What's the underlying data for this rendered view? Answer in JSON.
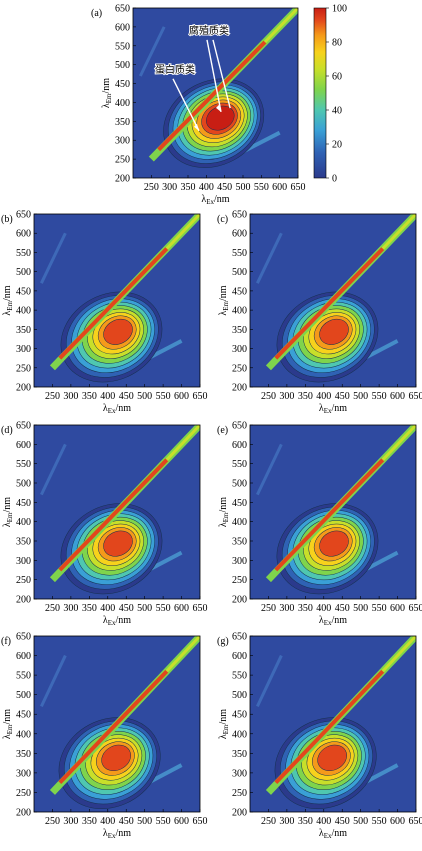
{
  "figure": {
    "colorbar": {
      "ticks": [
        0,
        20,
        40,
        60,
        80,
        100
      ],
      "colors": [
        "#2b3a8c",
        "#2f62b4",
        "#3aa0d6",
        "#4fc7b0",
        "#7fd44c",
        "#c8df2a",
        "#f7d21c",
        "#f59a1a",
        "#e2461c",
        "#c81e14"
      ]
    }
  },
  "chart_data": [
    {
      "type": "heatmap",
      "panel_label": "(a)",
      "xlabel": "λEx/nm",
      "ylabel": "λEm/nm",
      "xticks": [
        250,
        300,
        350,
        400,
        450,
        500,
        550,
        600,
        650
      ],
      "yticks": [
        200,
        250,
        300,
        350,
        400,
        450,
        500,
        550,
        600,
        650
      ],
      "xlim": [
        200,
        650
      ],
      "ylim": [
        200,
        650
      ],
      "annotations": [
        {
          "text": "蛋白质类",
          "points_to": {
            "x": 380,
            "y": 325
          }
        },
        {
          "text": "腐殖质类",
          "points_to": {
            "x": 440,
            "y": 375
          }
        }
      ],
      "peak": {
        "x": 440,
        "y": 360,
        "max": 100
      }
    },
    {
      "type": "heatmap",
      "panel_label": "(b)",
      "xlabel": "λEx/nm",
      "ylabel": "λEm/nm",
      "xticks": [
        250,
        300,
        350,
        400,
        450,
        500,
        550,
        600,
        650
      ],
      "yticks": [
        200,
        250,
        300,
        350,
        400,
        450,
        500,
        550,
        600,
        650
      ],
      "xlim": [
        200,
        650
      ],
      "ylim": [
        200,
        650
      ],
      "peak": {
        "x": 430,
        "y": 345,
        "max": 90
      }
    },
    {
      "type": "heatmap",
      "panel_label": "(c)",
      "xlabel": "λEx/nm",
      "ylabel": "λEm/nm",
      "xticks": [
        250,
        300,
        350,
        400,
        450,
        500,
        550,
        600,
        650
      ],
      "yticks": [
        200,
        250,
        300,
        350,
        400,
        450,
        500,
        550,
        600,
        650
      ],
      "xlim": [
        200,
        650
      ],
      "ylim": [
        200,
        650
      ],
      "peak": {
        "x": 430,
        "y": 345,
        "max": 90
      }
    },
    {
      "type": "heatmap",
      "panel_label": "(d)",
      "xlabel": "λEx/nm",
      "ylabel": "λEm/nm",
      "xticks": [
        250,
        300,
        350,
        400,
        450,
        500,
        550,
        600,
        650
      ],
      "yticks": [
        200,
        250,
        300,
        350,
        400,
        450,
        500,
        550,
        600,
        650
      ],
      "xlim": [
        200,
        650
      ],
      "ylim": [
        200,
        650
      ],
      "peak": {
        "x": 430,
        "y": 345,
        "max": 90
      }
    },
    {
      "type": "heatmap",
      "panel_label": "(e)",
      "xlabel": "λEx/nm",
      "ylabel": "λEm/nm",
      "xticks": [
        250,
        300,
        350,
        400,
        450,
        500,
        550,
        600,
        650
      ],
      "yticks": [
        200,
        250,
        300,
        350,
        400,
        450,
        500,
        550,
        600,
        650
      ],
      "xlim": [
        200,
        650
      ],
      "ylim": [
        200,
        650
      ],
      "peak": {
        "x": 430,
        "y": 345,
        "max": 90
      }
    },
    {
      "type": "heatmap",
      "panel_label": "(f)",
      "xlabel": "λEx/nm",
      "ylabel": "λEm/nm",
      "xticks": [
        250,
        300,
        350,
        400,
        450,
        500,
        550,
        600,
        650
      ],
      "yticks": [
        200,
        250,
        300,
        350,
        400,
        450,
        500,
        550,
        600,
        650
      ],
      "xlim": [
        200,
        650
      ],
      "ylim": [
        200,
        650
      ],
      "peak": {
        "x": 425,
        "y": 340,
        "max": 85
      }
    },
    {
      "type": "heatmap",
      "panel_label": "(g)",
      "xlabel": "λEx/nm",
      "ylabel": "λEm/nm",
      "xticks": [
        250,
        300,
        350,
        400,
        450,
        500,
        550,
        600,
        650
      ],
      "yticks": [
        200,
        250,
        300,
        350,
        400,
        450,
        500,
        550,
        600,
        650
      ],
      "xlim": [
        200,
        650
      ],
      "ylim": [
        200,
        650
      ],
      "peak": {
        "x": 425,
        "y": 340,
        "max": 85
      }
    }
  ]
}
